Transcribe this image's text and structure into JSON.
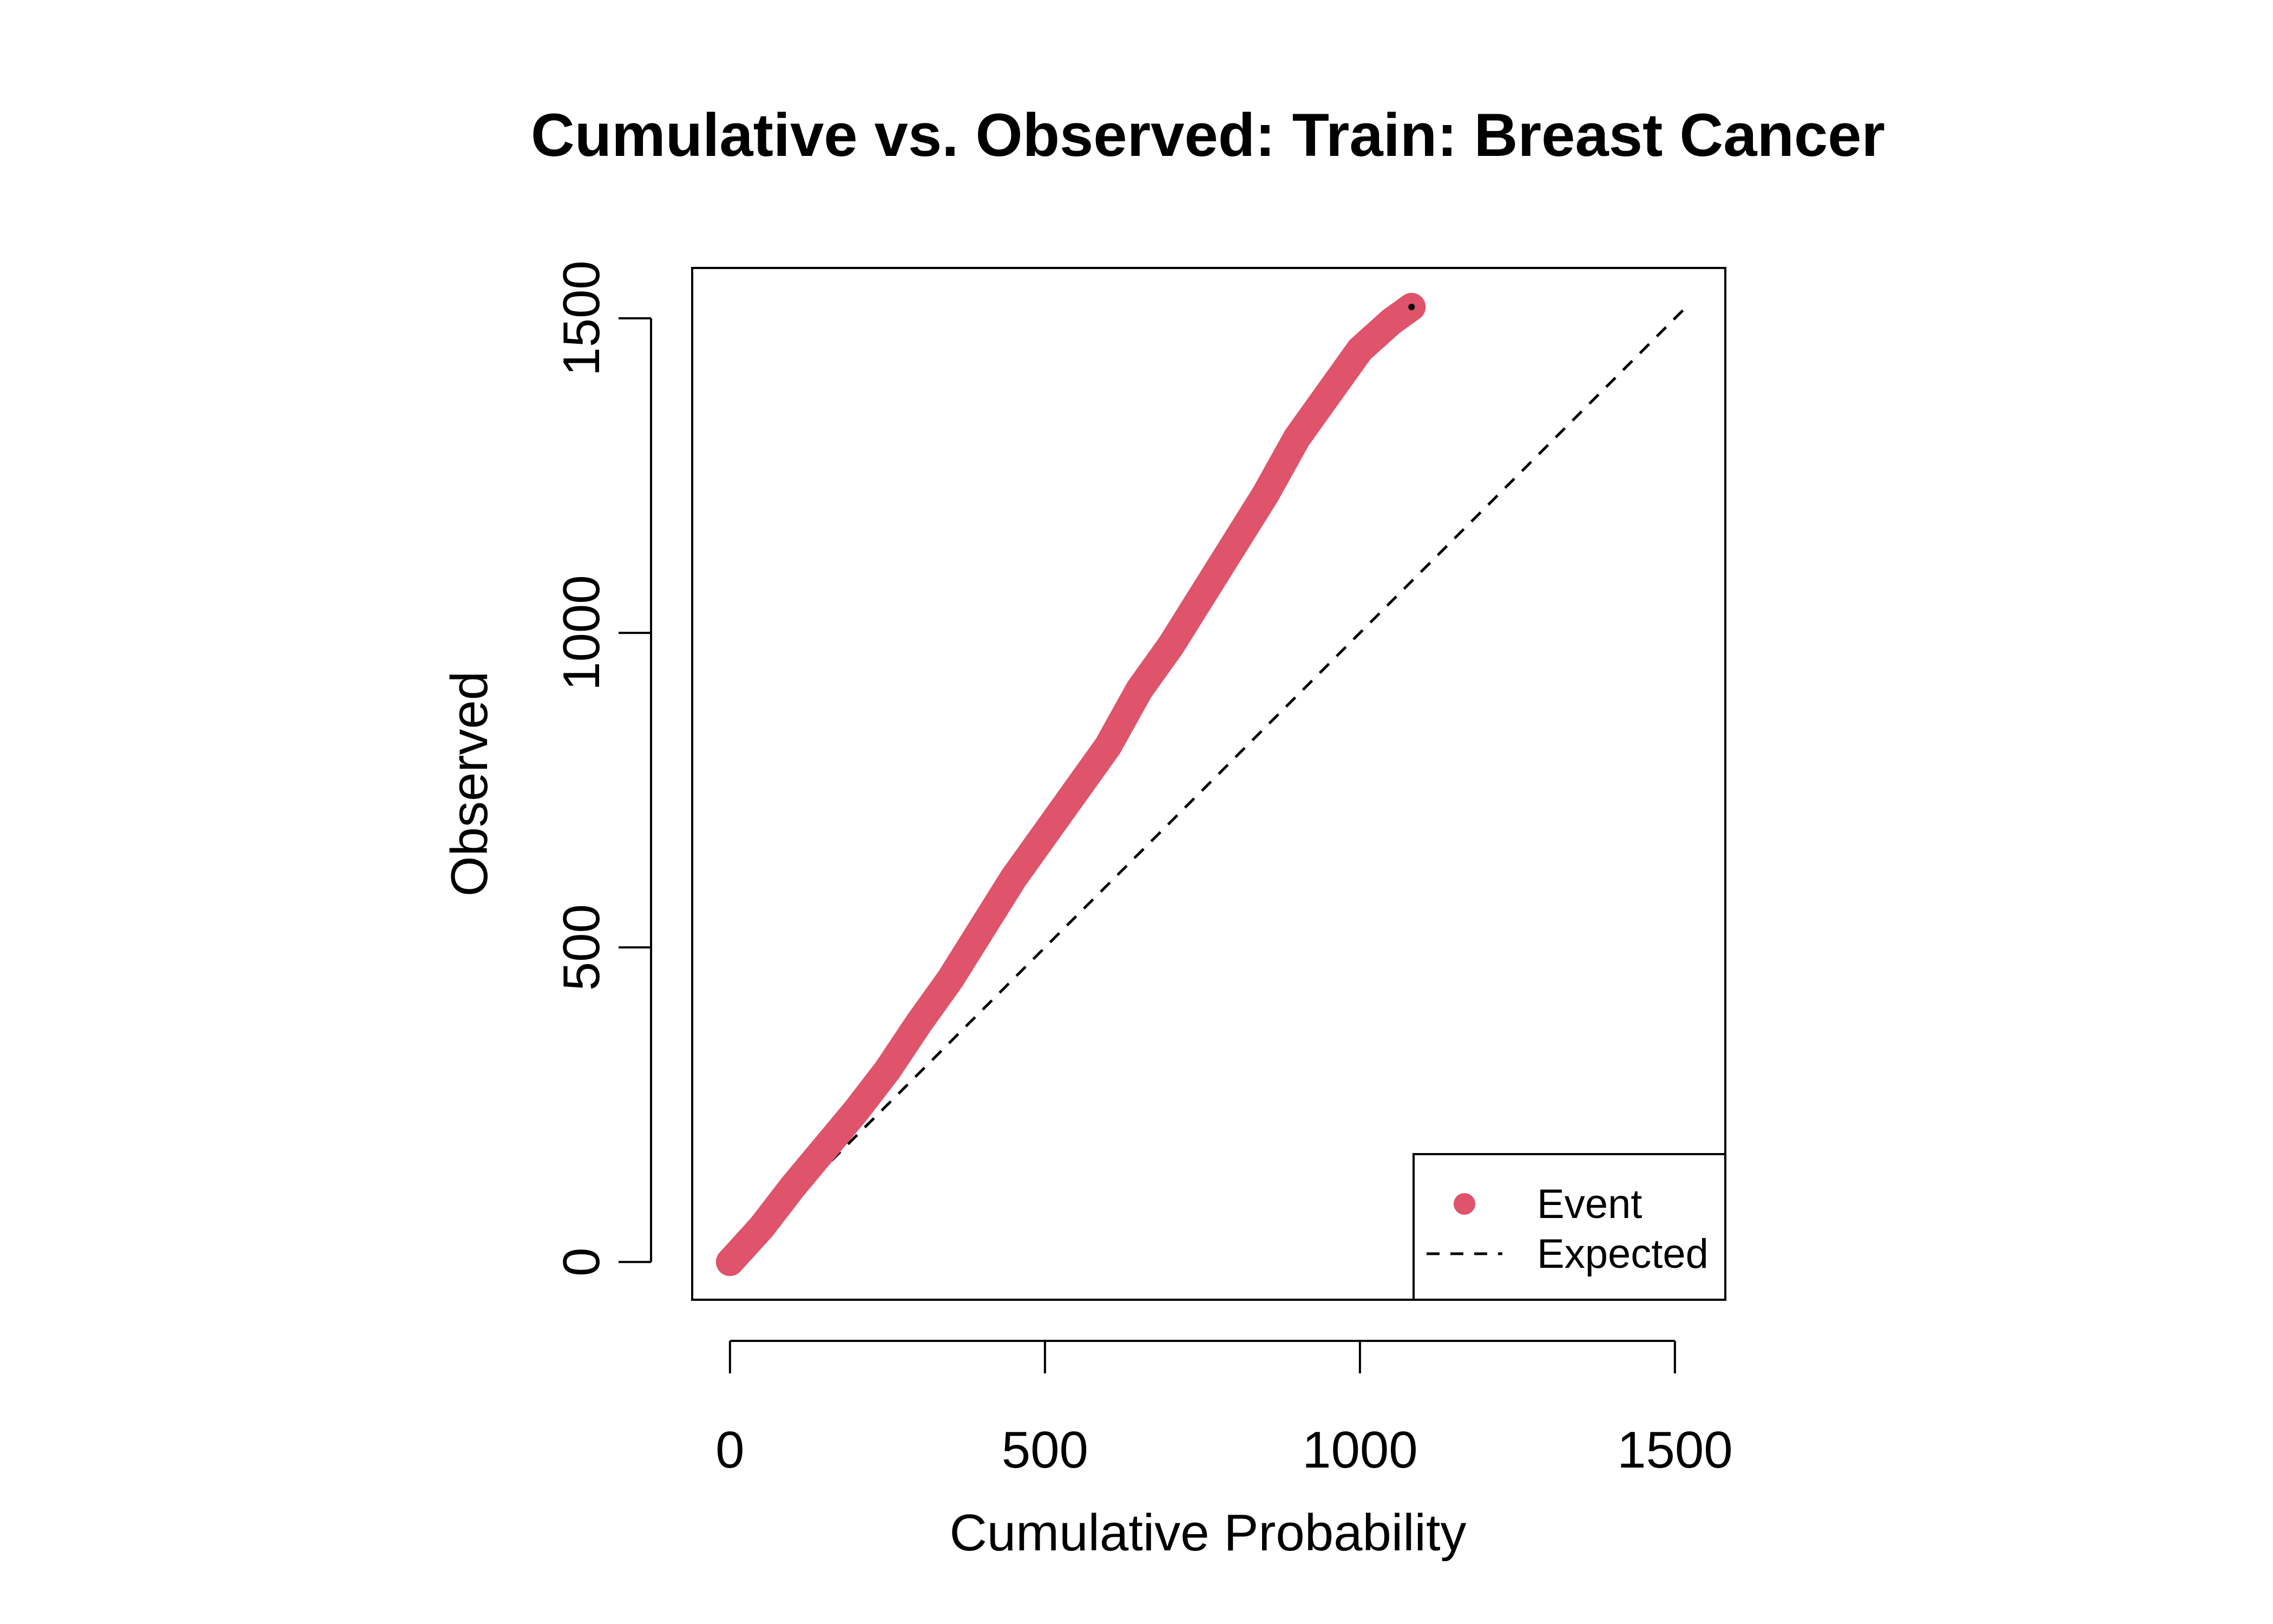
{
  "chart_data": {
    "type": "scatter",
    "title": "Cumulative vs. Observed: Train: Breast Cancer",
    "xlabel": "Cumulative Probability",
    "ylabel": "Observed",
    "xlim": [
      -60,
      1580
    ],
    "ylim": [
      -60,
      1580
    ],
    "x_ticks": [
      0,
      500,
      1000,
      1500
    ],
    "y_ticks": [
      0,
      500,
      1000,
      1500
    ],
    "x_tick_labels": [
      "0",
      "500",
      "1000",
      "1500"
    ],
    "y_tick_labels": [
      "0",
      "500",
      "1000",
      "1500"
    ],
    "grid": false,
    "legend_position": "bottom-right",
    "colors": {
      "event": "#DF536B",
      "expected": "#000000",
      "axis": "#000000"
    },
    "series": [
      {
        "name": "Event",
        "kind": "points",
        "points": [
          [
            0,
            0
          ],
          [
            50,
            55
          ],
          [
            100,
            120
          ],
          [
            150,
            180
          ],
          [
            200,
            240
          ],
          [
            250,
            305
          ],
          [
            300,
            380
          ],
          [
            350,
            450
          ],
          [
            400,
            530
          ],
          [
            450,
            610
          ],
          [
            500,
            680
          ],
          [
            550,
            750
          ],
          [
            600,
            820
          ],
          [
            650,
            910
          ],
          [
            700,
            980
          ],
          [
            750,
            1060
          ],
          [
            800,
            1140
          ],
          [
            850,
            1220
          ],
          [
            900,
            1310
          ],
          [
            950,
            1380
          ],
          [
            1000,
            1450
          ],
          [
            1050,
            1495
          ],
          [
            1082,
            1518
          ]
        ]
      },
      {
        "name": "Expected",
        "kind": "dashed-line",
        "points": [
          [
            0,
            0
          ],
          [
            1518,
            1518
          ]
        ]
      }
    ],
    "legend": [
      {
        "label": "Event",
        "symbol": "point"
      },
      {
        "label": "Expected",
        "symbol": "dashed-line"
      }
    ]
  }
}
